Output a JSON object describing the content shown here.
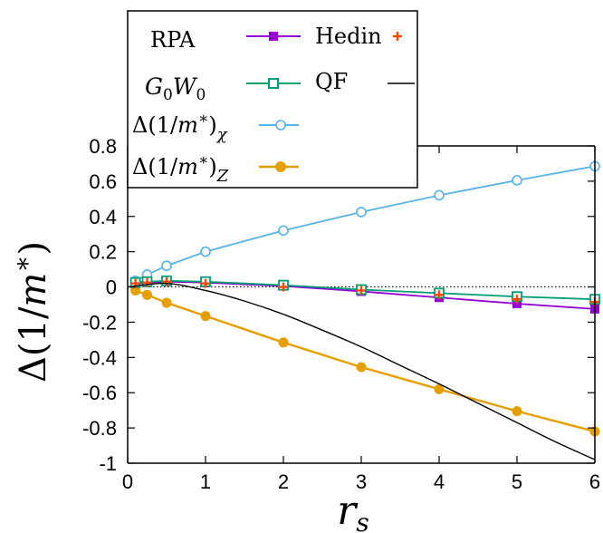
{
  "chart_data": {
    "type": "line",
    "xlabel": "r_s",
    "ylabel": "Δ(1/m*)",
    "xlim": [
      0,
      6
    ],
    "ylim": [
      -1,
      0.8
    ],
    "x_ticks": [
      "0",
      "1",
      "2",
      "3",
      "4",
      "5",
      "6"
    ],
    "y_ticks": [
      "-1",
      "-0.8",
      "-0.6",
      "-0.4",
      "-0.2",
      "0",
      "0.2",
      "0.4",
      "0.6",
      "0.8"
    ],
    "x_tick_values": [
      0,
      1,
      2,
      3,
      4,
      5,
      6
    ],
    "y_tick_values": [
      -1,
      -0.8,
      -0.6,
      -0.4,
      -0.2,
      0,
      0.2,
      0.4,
      0.6,
      0.8
    ],
    "legend": {
      "placement": "top-left, outside plot",
      "row_labels": [
        "RPA",
        "G0W0",
        "Δ(1/m*)χ",
        "Δ(1/m*)Z"
      ],
      "col_labels": [
        "Hedin",
        "QF"
      ]
    },
    "series": [
      {
        "name": "RPA Δ(1/m*)χ",
        "color": "#56b4e9",
        "marker": "open-circle",
        "x": [
          0.1,
          0.25,
          0.5,
          1,
          2,
          3,
          4,
          5,
          6
        ],
        "y": [
          0.035,
          0.07,
          0.12,
          0.2,
          0.32,
          0.425,
          0.52,
          0.605,
          0.685
        ]
      },
      {
        "name": "RPA Δ(1/m*)Z",
        "color": "#e69f00",
        "marker": "filled-circle",
        "x": [
          0.1,
          0.25,
          0.5,
          1,
          2,
          3,
          4,
          5,
          6
        ],
        "y": [
          -0.02,
          -0.045,
          -0.09,
          -0.165,
          -0.315,
          -0.455,
          -0.58,
          -0.705,
          -0.82
        ]
      },
      {
        "name": "RPA Hedin",
        "color": "#9400d3",
        "marker": "filled-square",
        "x": [
          0.1,
          0.25,
          0.5,
          1,
          2,
          3,
          4,
          5,
          6
        ],
        "y": [
          0.02,
          0.025,
          0.03,
          0.025,
          0.005,
          -0.025,
          -0.06,
          -0.095,
          -0.125
        ]
      },
      {
        "name": "G0W0 Hedin",
        "color": "#009e73",
        "marker": "open-square",
        "x": [
          0.1,
          0.25,
          0.5,
          1,
          2,
          3,
          4,
          5,
          6
        ],
        "y": [
          0.025,
          0.03,
          0.035,
          0.03,
          0.01,
          -0.015,
          -0.035,
          -0.055,
          -0.07
        ]
      },
      {
        "name": "QF",
        "color": "#ff4500",
        "marker": "plus",
        "x": [
          0.1,
          0.25,
          0.5,
          1,
          2,
          3,
          4,
          5,
          6
        ],
        "y": [
          0.02,
          0.025,
          0.03,
          0.02,
          0.0,
          -0.02,
          -0.045,
          -0.07,
          -0.085
        ]
      },
      {
        "name": "QF curve",
        "color": "#000000",
        "marker": "none",
        "x": [
          0,
          0.5,
          1,
          1.5,
          2,
          2.5,
          3,
          3.5,
          4,
          4.5,
          5,
          5.5,
          6
        ],
        "y": [
          0.0,
          0.02,
          -0.02,
          -0.08,
          -0.155,
          -0.245,
          -0.34,
          -0.445,
          -0.55,
          -0.66,
          -0.77,
          -0.88,
          -0.98
        ]
      }
    ]
  }
}
